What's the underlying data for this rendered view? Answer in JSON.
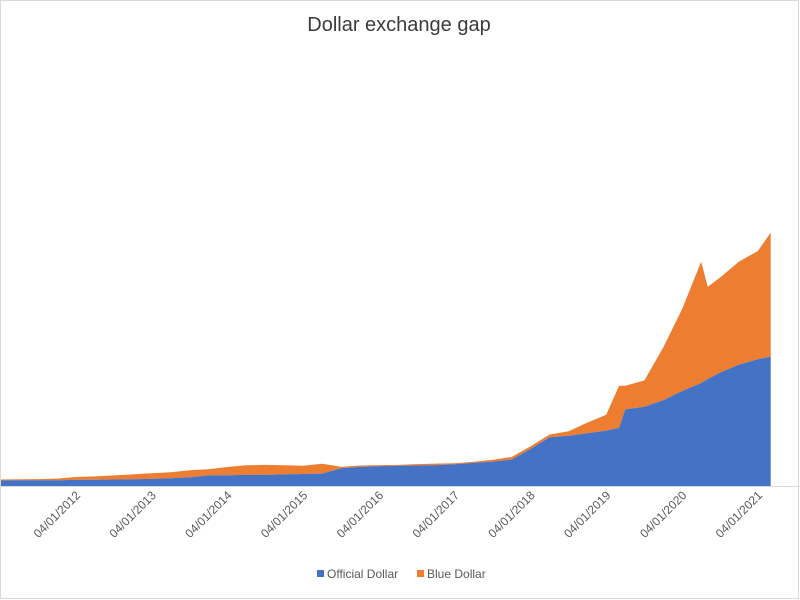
{
  "chart_data": {
    "type": "area",
    "stacked": true,
    "title": "Dollar exchange gap",
    "xlabel": "",
    "ylabel": "",
    "x_ticks": [
      "04/01/2012",
      "04/01/2013",
      "04/01/2014",
      "04/01/2015",
      "04/01/2016",
      "04/01/2017",
      "04/01/2018",
      "04/01/2019",
      "04/01/2020",
      "04/01/2021"
    ],
    "legend_position": "bottom",
    "grid": false,
    "y_axis_visible": false,
    "x": [
      "01/01/2011",
      "04/01/2011",
      "07/01/2011",
      "10/01/2011",
      "01/01/2012",
      "04/01/2012",
      "07/01/2012",
      "10/01/2012",
      "01/01/2013",
      "04/01/2013",
      "07/01/2013",
      "10/01/2013",
      "01/01/2014",
      "04/01/2014",
      "07/01/2014",
      "10/01/2014",
      "01/01/2015",
      "04/01/2015",
      "07/01/2015",
      "10/01/2015",
      "01/01/2016",
      "04/01/2016",
      "07/01/2016",
      "10/01/2016",
      "01/01/2017",
      "04/01/2017",
      "07/01/2017",
      "10/01/2017",
      "01/01/2018",
      "04/01/2018",
      "07/01/2018",
      "10/01/2018",
      "01/01/2019",
      "04/01/2019",
      "07/01/2019",
      "09/01/2019",
      "10/01/2019",
      "01/01/2020",
      "04/01/2020",
      "07/01/2020",
      "10/01/2020",
      "11/01/2020",
      "01/01/2021",
      "04/01/2021",
      "07/01/2021",
      "09/01/2021"
    ],
    "series": [
      {
        "name": "Official Dollar",
        "color": "#4472c4",
        "values": [
          4.0,
          4.1,
          4.2,
          4.3,
          4.3,
          4.4,
          4.6,
          4.7,
          4.9,
          5.1,
          5.4,
          5.8,
          6.5,
          8.0,
          8.2,
          8.4,
          8.5,
          8.8,
          9.1,
          9.4,
          13.5,
          14.5,
          15.0,
          15.3,
          15.5,
          15.8,
          16.5,
          17.5,
          18.5,
          20.0,
          28.0,
          37.0,
          38.0,
          40.0,
          42.0,
          44.0,
          58.0,
          60.0,
          65.0,
          72.0,
          78.0,
          81.0,
          86.0,
          92.0,
          96.0,
          98.0
        ]
      },
      {
        "name": "Blue Dollar",
        "color": "#ed7d31",
        "values": [
          0.5,
          0.6,
          0.7,
          0.8,
          0.9,
          1.2,
          2.2,
          2.6,
          3.1,
          3.7,
          4.3,
          4.6,
          5.5,
          4.7,
          6.2,
          7.3,
          7.5,
          6.9,
          6.2,
          7.5,
          1.0,
          1.0,
          0.8,
          0.7,
          1.1,
          1.2,
          0.8,
          0.9,
          1.4,
          2.0,
          2.0,
          2.0,
          3.5,
          8.0,
          12.0,
          32.0,
          18.0,
          20.0,
          40.0,
          62.0,
          92.0,
          70.0,
          72.0,
          78.0,
          82.0,
          94.0
        ]
      }
    ]
  }
}
